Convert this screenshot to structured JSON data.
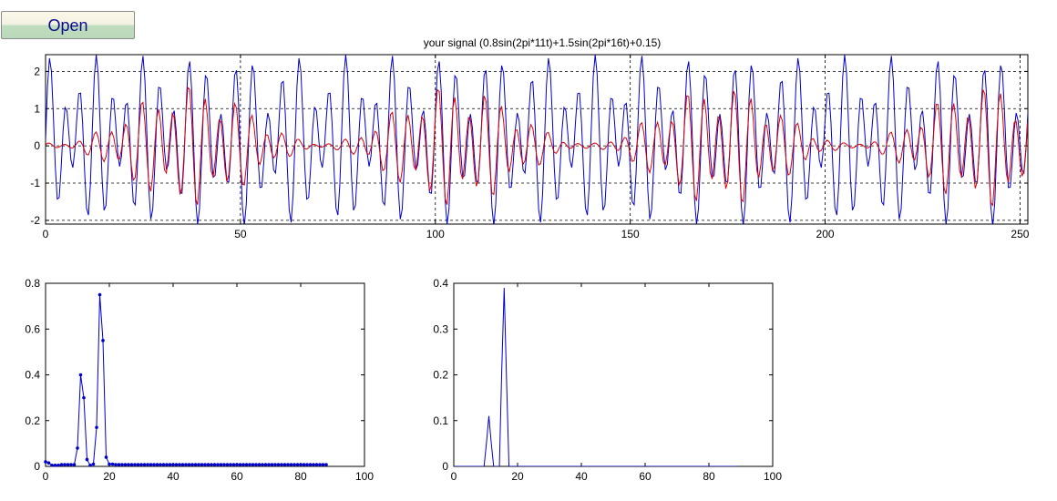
{
  "toolbar": {
    "open_label": "Open"
  },
  "chart_data": [
    {
      "type": "line",
      "title": "your signal (0.8sin(2pi*11t)+1.5sin(2pi*16t)+0.15)",
      "xlim": [
        0,
        252
      ],
      "ylim": [
        -2.1,
        2.45
      ],
      "xticks": [
        0,
        50,
        100,
        150,
        200,
        250
      ],
      "yticks": [
        -2,
        -1,
        0,
        1,
        2
      ],
      "grid": true,
      "series": [
        {
          "color": "#0000cc",
          "kind": "line",
          "formula": {
            "amplitudes": [
              0.8,
              1.5
            ],
            "frequencies": [
              11,
              16
            ],
            "offset": 0.15,
            "samples_per_unit": 64,
            "x_range": [
              0,
              252
            ],
            "step": 0.5
          }
        },
        {
          "color": "#dd0000",
          "kind": "line",
          "formula": {
            "amplitudes": [
              1.0,
              1.0
            ],
            "frequencies": [
              11,
              16
            ],
            "offset": 0,
            "samples_per_unit": 64,
            "x_range": [
              0,
              252
            ],
            "step": 0.5
          }
        }
      ]
    },
    {
      "type": "line",
      "title": "",
      "xlim": [
        0,
        100
      ],
      "ylim": [
        0,
        0.8
      ],
      "xticks": [
        0,
        20,
        40,
        60,
        80,
        100
      ],
      "yticks": [
        0,
        0.2,
        0.4,
        0.6,
        0.8
      ],
      "grid": false,
      "series": [
        {
          "color": "#0000cc",
          "kind": "stem-line",
          "point_marker": true,
          "x": [
            0,
            1,
            2,
            3,
            4,
            5,
            6,
            7,
            8,
            9,
            10,
            11,
            12,
            13,
            14,
            15,
            16,
            17,
            18,
            19,
            20,
            21,
            22,
            23,
            24,
            25,
            26,
            27,
            28,
            29,
            30,
            31,
            32,
            33,
            34,
            35,
            36,
            37,
            38,
            39,
            40,
            41,
            42,
            43,
            44,
            45,
            46,
            47,
            48,
            49,
            50,
            51,
            52,
            53,
            54,
            55,
            56,
            57,
            58,
            59,
            60,
            61,
            62,
            63,
            64,
            65,
            66,
            67,
            68,
            69,
            70,
            71,
            72,
            73,
            74,
            75,
            76,
            77,
            78,
            79,
            80,
            81,
            82,
            83,
            84,
            85,
            86,
            87,
            88
          ],
          "y": [
            0.02,
            0.015,
            0.005,
            0.005,
            0.005,
            0.008,
            0.008,
            0.008,
            0.008,
            0.008,
            0.08,
            0.4,
            0.3,
            0.03,
            0.005,
            0.01,
            0.17,
            0.75,
            0.55,
            0.04,
            0.01,
            0.01,
            0.008,
            0.008,
            0.008,
            0.008,
            0.008,
            0.008,
            0.008,
            0.008,
            0.008,
            0.008,
            0.008,
            0.008,
            0.008,
            0.008,
            0.008,
            0.008,
            0.008,
            0.008,
            0.008,
            0.008,
            0.008,
            0.008,
            0.008,
            0.008,
            0.008,
            0.008,
            0.008,
            0.008,
            0.008,
            0.008,
            0.008,
            0.008,
            0.008,
            0.008,
            0.008,
            0.008,
            0.008,
            0.008,
            0.008,
            0.008,
            0.008,
            0.008,
            0.008,
            0.008,
            0.008,
            0.008,
            0.008,
            0.008,
            0.008,
            0.008,
            0.008,
            0.008,
            0.008,
            0.008,
            0.008,
            0.008,
            0.008,
            0.008,
            0.008,
            0.008,
            0.008,
            0.008,
            0.008,
            0.008,
            0.008,
            0.008,
            0.008
          ]
        }
      ]
    },
    {
      "type": "line",
      "title": "",
      "xlim": [
        0,
        100
      ],
      "ylim": [
        0,
        0.4
      ],
      "xticks": [
        0,
        20,
        40,
        60,
        80,
        100
      ],
      "yticks": [
        0,
        0.1,
        0.2,
        0.3,
        0.4
      ],
      "grid": false,
      "series": [
        {
          "color": "#0000cc",
          "kind": "line",
          "x": [
            0,
            9.5,
            10.3,
            11,
            11.7,
            12.5,
            14.3,
            15,
            15.8,
            16.5,
            17.3,
            89
          ],
          "y": [
            0,
            0,
            0.055,
            0.11,
            0.055,
            0,
            0,
            0.2,
            0.39,
            0.2,
            0,
            0
          ]
        }
      ]
    }
  ]
}
